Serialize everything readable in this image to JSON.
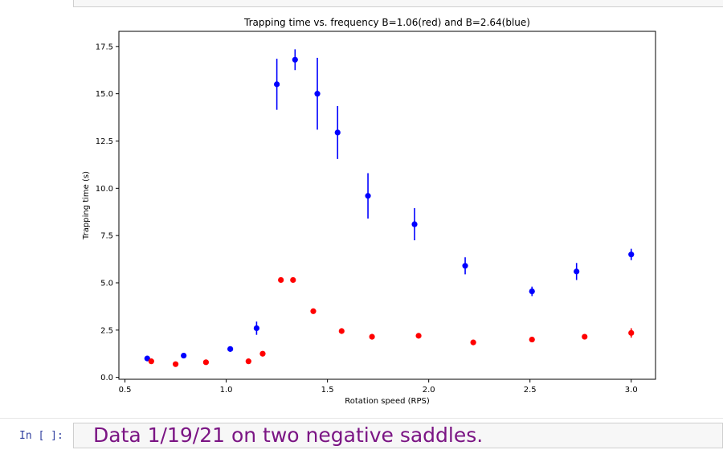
{
  "notebook": {
    "input_prompt": "In [ ]:",
    "markdown_text": "Data 1/19/21 on two negative saddles."
  },
  "chart_data": {
    "type": "scatter",
    "title": "Trapping time vs. frequency B=1.06(red) and B=2.64(blue)",
    "xlabel": "Rotation speed (RPS)",
    "ylabel": "Trapping time (s)",
    "xlim": [
      0.47,
      3.12
    ],
    "ylim": [
      -0.1,
      18.3
    ],
    "xticks": [
      0.5,
      1.0,
      1.5,
      2.0,
      2.5,
      3.0
    ],
    "xtick_labels": [
      "0.5",
      "1.0",
      "1.5",
      "2.0",
      "2.5",
      "3.0"
    ],
    "yticks": [
      0.0,
      2.5,
      5.0,
      7.5,
      10.0,
      12.5,
      15.0,
      17.5
    ],
    "ytick_labels": [
      "0.0",
      "2.5",
      "5.0",
      "7.5",
      "10.0",
      "12.5",
      "15.0",
      "17.5"
    ],
    "grid": false,
    "series": [
      {
        "color": "#0000ff",
        "x": [
          0.61,
          0.79,
          1.02,
          1.15,
          1.25,
          1.34,
          1.45,
          1.55,
          1.7,
          1.93,
          2.18,
          2.51,
          2.73,
          3.0
        ],
        "y": [
          1.0,
          1.15,
          1.5,
          2.6,
          15.5,
          16.8,
          15.0,
          12.95,
          9.6,
          8.1,
          5.9,
          4.55,
          5.6,
          6.5
        ],
        "yerr": [
          0.1,
          0.1,
          0.1,
          0.35,
          1.35,
          0.55,
          1.9,
          1.4,
          1.2,
          0.85,
          0.45,
          0.25,
          0.45,
          0.3
        ]
      },
      {
        "color": "#ff0000",
        "x": [
          0.63,
          0.75,
          0.9,
          1.11,
          1.18,
          1.27,
          1.33,
          1.43,
          1.57,
          1.72,
          1.95,
          2.22,
          2.51,
          2.77,
          3.0
        ],
        "y": [
          0.85,
          0.7,
          0.8,
          0.85,
          1.25,
          5.15,
          5.15,
          3.5,
          2.45,
          2.15,
          2.2,
          1.85,
          2.0,
          2.15,
          2.35
        ],
        "yerr": [
          0.05,
          0.05,
          0.05,
          0.05,
          0.08,
          0.08,
          0.08,
          0.08,
          0.15,
          0.15,
          0.08,
          0.08,
          0.08,
          0.08,
          0.25
        ]
      }
    ]
  }
}
